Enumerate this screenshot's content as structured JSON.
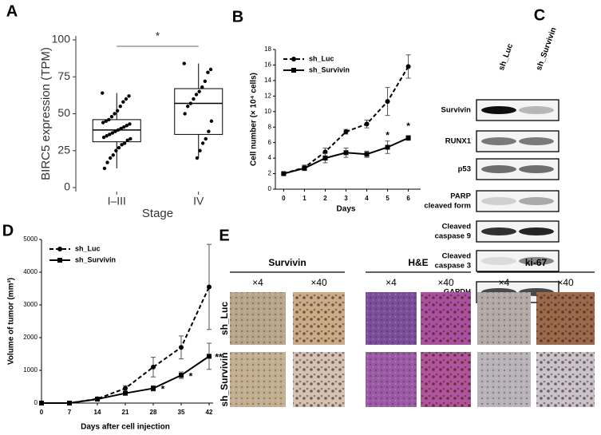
{
  "chart_data": [
    {
      "type": "box",
      "panel": "A",
      "ylabel": "BIRC5 expression (TPM)",
      "xlabel": "Stage",
      "categories": [
        "I–III",
        "IV"
      ],
      "ylim": [
        0,
        100
      ],
      "yticks": [
        0,
        25,
        50,
        75,
        100
      ],
      "color": "#000000",
      "boxes": [
        {
          "whisker_low": 13,
          "q1": 31,
          "median": 39,
          "q3": 46,
          "whisker_high": 64,
          "points": [
            64,
            62,
            60,
            58,
            55,
            52,
            50,
            48,
            46,
            45,
            44,
            43,
            42,
            41,
            40,
            39,
            38,
            37,
            36,
            35,
            34,
            33,
            32,
            30,
            29,
            27,
            25,
            22,
            20,
            17,
            13
          ]
        },
        {
          "whisker_low": 20,
          "q1": 36,
          "median": 57,
          "q3": 67,
          "whisker_high": 84,
          "points": [
            84,
            80,
            78,
            72,
            68,
            65,
            63,
            60,
            57,
            55,
            50,
            45,
            38,
            33,
            30,
            25,
            20
          ]
        }
      ],
      "annotations": [
        {
          "text": "*"
        }
      ]
    },
    {
      "type": "line",
      "panel": "B",
      "xlabel": "Days",
      "ylabel": "Cell number (× 10⁴ cells)",
      "x": [
        0,
        1,
        2,
        3,
        4,
        5,
        6
      ],
      "xlim": [
        -0.4,
        6.4
      ],
      "xticks": [
        0,
        1,
        2,
        3,
        4,
        5,
        6
      ],
      "ylim": [
        0,
        18
      ],
      "yticks": [
        0,
        2,
        4,
        6,
        8,
        10,
        12,
        14,
        16,
        18
      ],
      "legend": "upper left",
      "annotation_side": "above",
      "series": [
        {
          "name": "sh_Luc",
          "color": "#000000",
          "dash": true,
          "marker": "circle",
          "values": [
            2,
            2.8,
            4.8,
            7.4,
            8.4,
            11.3,
            15.8
          ],
          "errors": [
            0.1,
            0.3,
            0.5,
            0.3,
            0.5,
            1.8,
            1.5
          ]
        },
        {
          "name": "sh_Survivin",
          "color": "#000000",
          "dash": false,
          "marker": "square",
          "values": [
            2,
            2.7,
            4.0,
            4.7,
            4.5,
            5.4,
            6.6
          ],
          "errors": [
            0.1,
            0.3,
            0.6,
            0.6,
            0.4,
            0.8,
            0.3
          ]
        }
      ],
      "annotations": [
        {
          "text": "*",
          "x": 5
        },
        {
          "text": "*",
          "x": 6
        }
      ]
    },
    {
      "type": "line",
      "panel": "D",
      "xlabel": "Days after cell injection",
      "ylabel": "Volume of tumor (mm³)",
      "x": [
        0,
        7,
        14,
        21,
        28,
        35,
        42
      ],
      "xlim": [
        0,
        42
      ],
      "xticks": [
        0,
        7,
        14,
        21,
        28,
        35,
        42
      ],
      "ylim": [
        0,
        5000
      ],
      "yticks": [
        0,
        1000,
        2000,
        3000,
        4000,
        5000
      ],
      "legend": "upper left",
      "annotation_side": "right",
      "series": [
        {
          "name": "sh_Luc",
          "color": "#000000",
          "dash": true,
          "marker": "circle",
          "values": [
            0,
            0,
            130,
            450,
            1100,
            1700,
            3550
          ],
          "errors": [
            0,
            0,
            30,
            80,
            300,
            350,
            1300
          ]
        },
        {
          "name": "sh_Survivin",
          "color": "#000000",
          "dash": false,
          "marker": "square",
          "values": [
            0,
            0,
            120,
            300,
            450,
            850,
            1430
          ],
          "errors": [
            0,
            0,
            20,
            50,
            80,
            100,
            400
          ]
        }
      ],
      "annotations": [
        {
          "text": "*",
          "x": 28
        },
        {
          "text": "*",
          "x": 35
        },
        {
          "text": "**",
          "x": 42
        }
      ]
    }
  ],
  "blot": {
    "panel": "C",
    "lanes": [
      "sh_Luc",
      "sh_Survivin"
    ],
    "rows": [
      [
        "Survivin"
      ],
      [
        "RUNX1"
      ],
      [
        "p53"
      ],
      [
        "PARP",
        "cleaved form"
      ],
      [
        "Cleaved",
        "caspase 9"
      ],
      [
        "Cleaved",
        "caspase 3"
      ],
      [
        "GAPDH"
      ]
    ]
  },
  "histology": {
    "panel": "E",
    "stains": [
      "Survivin",
      "H&E",
      "ki-67"
    ],
    "magnifications": [
      "×4",
      "×40"
    ],
    "rows": [
      "sh_Luc",
      "sh_Survivin"
    ]
  }
}
